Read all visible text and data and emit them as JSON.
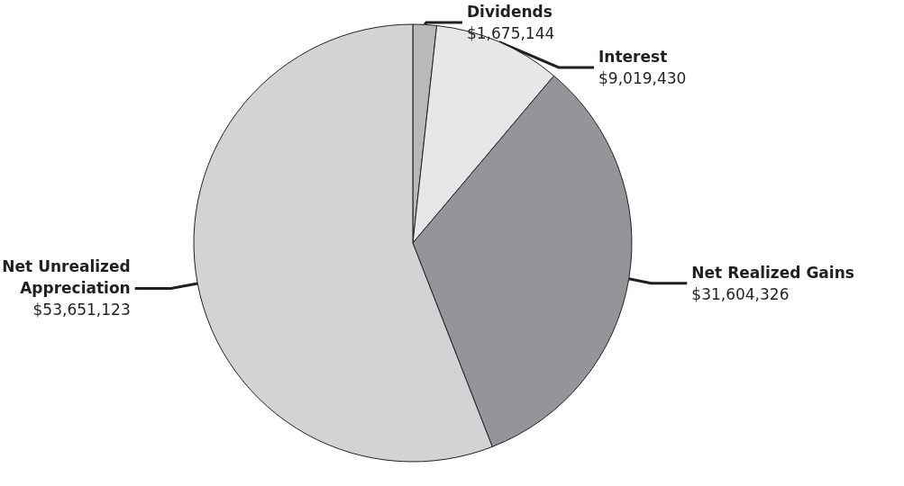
{
  "chart_data": {
    "type": "pie",
    "categories": [
      "Dividends",
      "Interest",
      "Net Realized Gains",
      "Net Unrealized Appreciation"
    ],
    "values": [
      1675144,
      9019430,
      31604326,
      53651123
    ],
    "value_labels": [
      "$1,675,144",
      "$9,019,430",
      "$31,604,326",
      "$53,651,123"
    ],
    "colors": [
      "#b8b9bb",
      "#e6e7e8",
      "#939598",
      "#d1d3d4"
    ],
    "legend": false
  }
}
